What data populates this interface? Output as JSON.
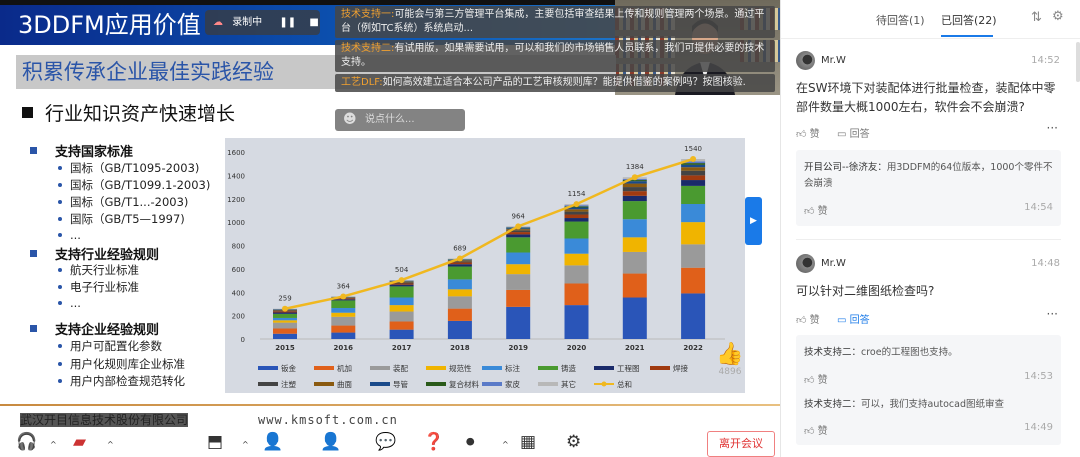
{
  "slide": {
    "title": "3DDFM应用价值",
    "subtitle": "积累传承企业最佳实践经验",
    "bullet_heading": "行业知识资产快速增长",
    "sections": [
      {
        "heading": "支持国家标准",
        "items": [
          "国标（GB/T1095-2003)",
          "国标（GB/T1099.1-2003)",
          "国标（GB/T1...-2003)",
          "国际（GB/T5—1997)",
          "..."
        ]
      },
      {
        "heading": "支持行业经验规则",
        "items": [
          "航天行业标准",
          "电子行业标准",
          "..."
        ]
      },
      {
        "heading": "支持企业经验规则",
        "items": [
          "用户可配置化参数",
          "用户化规则库企业标准",
          "用户内部检查规范转化"
        ]
      }
    ],
    "footer_company": "武汉开目信息技术股份有限公司",
    "footer_url": "www.kmsoft.com.cn"
  },
  "recording": {
    "label": "录制中",
    "icon": "cloud-icon"
  },
  "overlay_chat": [
    {
      "who": "技术支持一:",
      "text": "可能会与第三方管理平台集成，主要包括审查结果上传和规则管理两个场景。通过平台（例如TC系统）系统启动..."
    },
    {
      "who": "技术支持二:",
      "text": "有试用版，如果需要试用，可以和我们的市场销售人员联系，我们可提供必要的技术支持。"
    },
    {
      "who": "工艺DLF:",
      "text": "如何高效建立适合本公司产品的工艺审核规则库？能提供借鉴的案例吗？按图核验."
    }
  ],
  "chat_input_placeholder": "说点什么...",
  "like_count": "4896",
  "chart_data": {
    "type": "bar",
    "stacked": true,
    "categories": [
      "2015",
      "2016",
      "2017",
      "2018",
      "2019",
      "2020",
      "2021",
      "2022"
    ],
    "ylim": [
      0,
      1600
    ],
    "yticks": [
      0,
      200,
      400,
      600,
      800,
      1000,
      1200,
      1400,
      1600
    ],
    "grid": false,
    "legend_placement": "bottom",
    "series": [
      {
        "name": "钣金",
        "color": "#2a55b8",
        "values": [
          45,
          55,
          80,
          155,
          275,
          290,
          355,
          390
        ]
      },
      {
        "name": "机加",
        "color": "#e0601a",
        "values": [
          45,
          60,
          70,
          105,
          145,
          185,
          205,
          220
        ]
      },
      {
        "name": "装配",
        "color": "#9a9a9a",
        "values": [
          50,
          75,
          85,
          105,
          135,
          155,
          185,
          200
        ]
      },
      {
        "name": "规范性",
        "color": "#f0b400",
        "values": [
          20,
          35,
          55,
          60,
          85,
          100,
          125,
          190
        ]
      },
      {
        "name": "标注",
        "color": "#3a8ad8",
        "values": [
          20,
          40,
          65,
          85,
          100,
          130,
          155,
          155
        ]
      },
      {
        "name": "铸造",
        "color": "#4a9a30",
        "values": [
          35,
          65,
          95,
          110,
          130,
          145,
          155,
          155
        ]
      },
      {
        "name": "工程图",
        "color": "#1a2a6a",
        "values": [
          12,
          10,
          15,
          20,
          25,
          30,
          45,
          50
        ]
      },
      {
        "name": "焊接",
        "color": "#a03a10",
        "values": [
          10,
          8,
          10,
          15,
          20,
          30,
          40,
          40
        ]
      },
      {
        "name": "注塑",
        "color": "#444444",
        "values": [
          8,
          6,
          10,
          10,
          15,
          25,
          35,
          40
        ]
      },
      {
        "name": "曲面",
        "color": "#8a5a10",
        "values": [
          5,
          3,
          6,
          8,
          10,
          20,
          30,
          30
        ]
      },
      {
        "name": "导管",
        "color": "#1a4a8a",
        "values": [
          3,
          2,
          4,
          5,
          8,
          15,
          20,
          20
        ]
      },
      {
        "name": "复合材料",
        "color": "#2a5a1a",
        "values": [
          2,
          2,
          3,
          4,
          5,
          10,
          10,
          15
        ]
      },
      {
        "name": "家皮",
        "color": "#5a7ac8",
        "values": [
          2,
          1,
          3,
          3,
          5,
          10,
          10,
          15
        ]
      },
      {
        "name": "其它",
        "color": "#b8b8b8",
        "values": [
          2,
          2,
          3,
          4,
          6,
          9,
          14,
          20
        ]
      }
    ],
    "line": {
      "name": "总和",
      "color": "#f0b820",
      "values": [
        259,
        364,
        504,
        689,
        964,
        1154,
        1384,
        1540
      ]
    }
  },
  "panel": {
    "tabs": [
      {
        "label": "待回答(1)",
        "active": false
      },
      {
        "label": "已回答(22)",
        "active": true
      }
    ],
    "accent": "#1a7ae8",
    "questions": [
      {
        "user": "Mr.W",
        "time": "14:52",
        "text": "在SW环境下对装配体进行批量检查，装配体中零部件数量大概1000左右，软件会不会崩溃?",
        "like": "赞",
        "reply": "回答",
        "answers": [
          {
            "who": "开目公司--徐济友：",
            "text": "用3DDFM的64位版本，1000个零件不会崩溃",
            "like": "赞",
            "time": "14:54"
          }
        ]
      },
      {
        "user": "Mr.W",
        "time": "14:48",
        "text": "可以针对二维图纸检查吗?",
        "like": "赞",
        "reply": "回答",
        "answers": [
          {
            "who": "技术支持二：",
            "text": "croe的工程图也支持。",
            "like": "赞",
            "time": "14:53"
          },
          {
            "who": "技术支持二：",
            "text": "可以，我们支持autocad图纸审查",
            "like": "赞",
            "time": "14:49"
          }
        ]
      }
    ]
  },
  "toolbar": {
    "leave_label": "离开会议"
  }
}
